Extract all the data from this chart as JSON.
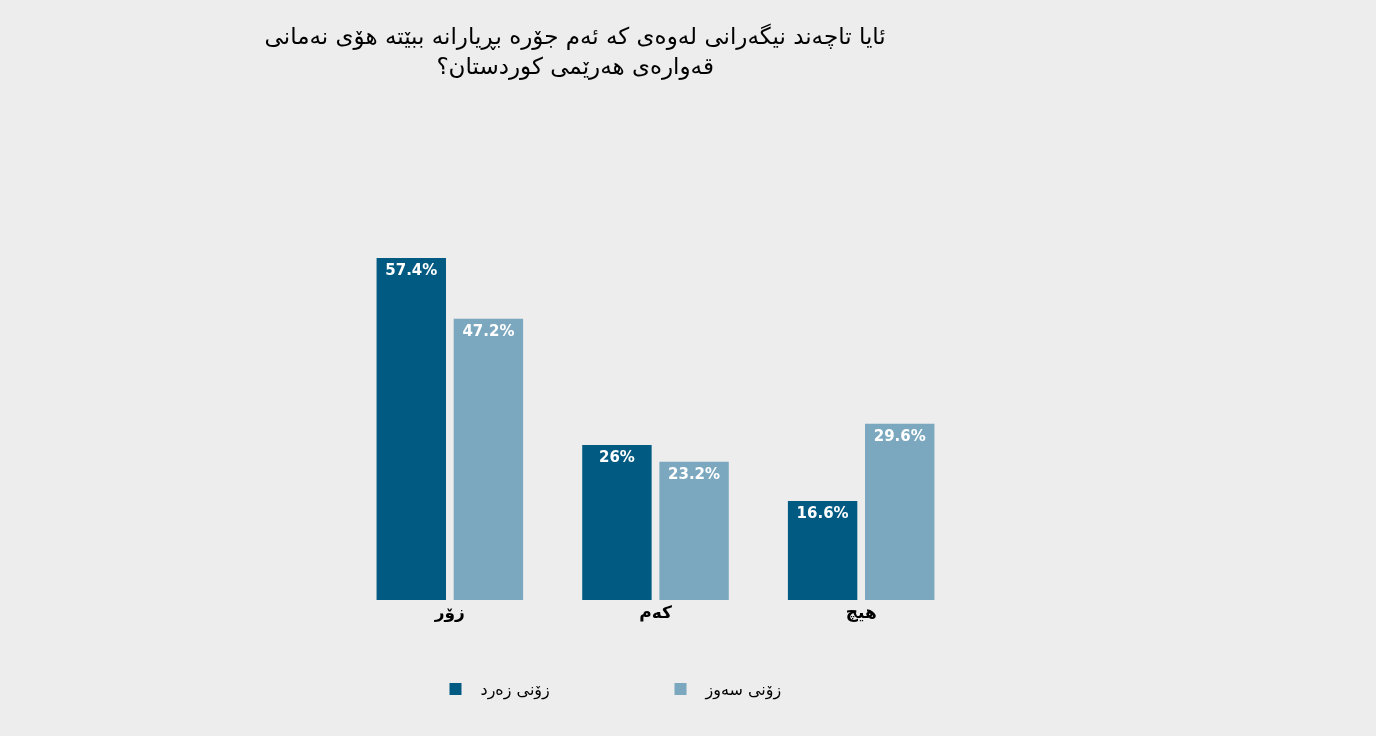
{
  "chart_data": {
    "type": "bar",
    "title": "ئایا تاچەند نیگەرانی لەوەی کە ئەم جۆرە بڕیارانە ببێتە هۆی نەمانی قەوارەی هەرێمی کوردستان؟",
    "categories": [
      "زۆر",
      "کەم",
      "هیچ"
    ],
    "series": [
      {
        "name": "زۆنی زەرد",
        "color": "#005a82",
        "values": [
          57.4,
          26,
          16.6
        ],
        "value_labels": [
          "57.4%",
          "26%",
          "16.6%"
        ]
      },
      {
        "name": "زۆنی سەوز",
        "color": "#7ba8bf",
        "values": [
          47.2,
          23.2,
          29.6
        ],
        "value_labels": [
          "47.2%",
          "23.2%",
          "29.6%"
        ]
      }
    ],
    "legend": "bottom",
    "tick_labels": "x"
  }
}
